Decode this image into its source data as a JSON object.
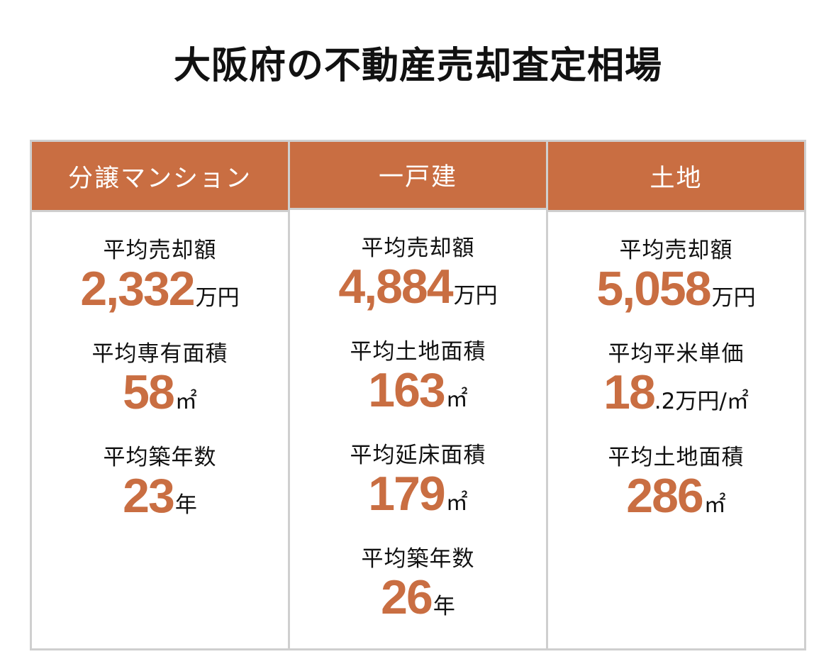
{
  "title": "大阪府の不動産売却査定相場",
  "colors": {
    "accent": "#c96e42",
    "border": "#cfcfcf",
    "text": "#111111"
  },
  "columns": [
    {
      "header": "分譲マンション",
      "stats": [
        {
          "label": "平均売却額",
          "value": "2,332",
          "unit": "万円"
        },
        {
          "label": "平均専有面積",
          "value": "58",
          "unit": "㎡"
        },
        {
          "label": "平均築年数",
          "value": "23",
          "unit": "年"
        }
      ]
    },
    {
      "header": "一戸建",
      "stats": [
        {
          "label": "平均売却額",
          "value": "4,884",
          "unit": "万円"
        },
        {
          "label": "平均土地面積",
          "value": "163",
          "unit": "㎡"
        },
        {
          "label": "平均延床面積",
          "value": "179",
          "unit": "㎡"
        },
        {
          "label": "平均築年数",
          "value": "26",
          "unit": "年"
        }
      ]
    },
    {
      "header": "土地",
      "stats": [
        {
          "label": "平均売却額",
          "value": "5,058",
          "unit": "万円"
        },
        {
          "label": "平均平米単価",
          "value": "18",
          "unit": ".2万円/㎡"
        },
        {
          "label": "平均土地面積",
          "value": "286",
          "unit": "㎡"
        }
      ]
    }
  ]
}
